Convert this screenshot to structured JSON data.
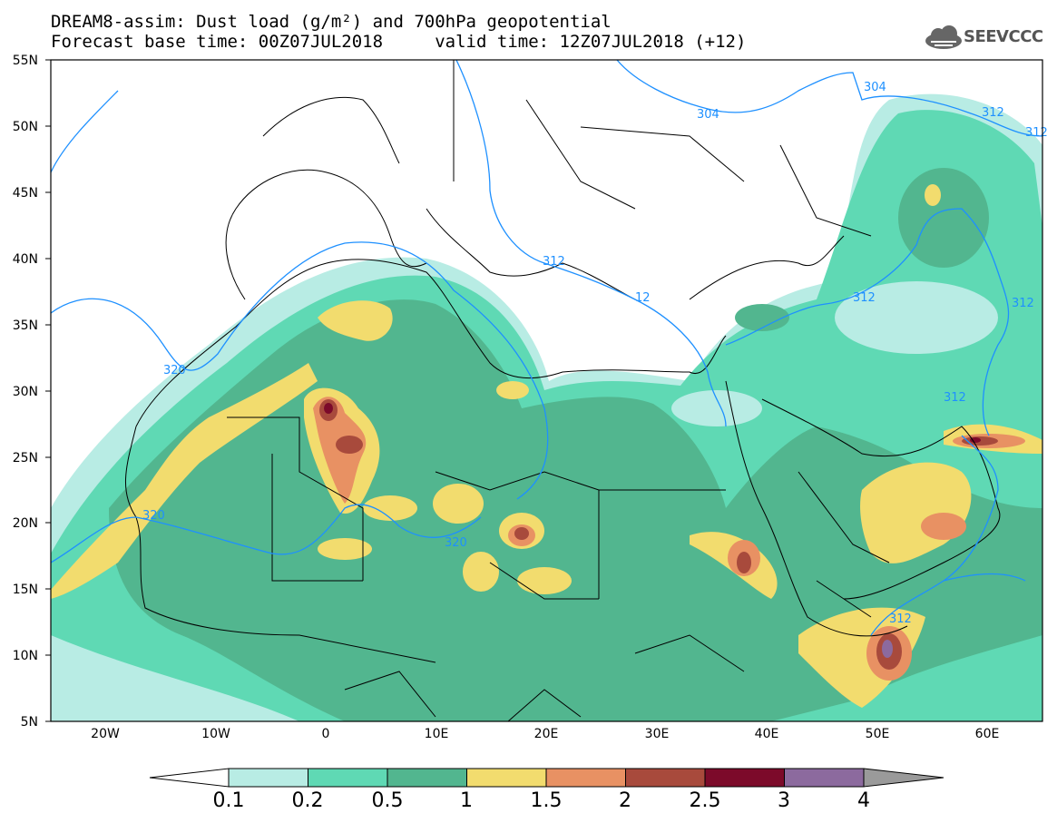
{
  "title": {
    "line1": "DREAM8-assim: Dust load (g/m²) and 700hPa geopotential",
    "line2": "Forecast base time: 00Z07JUL2018     valid time: 12Z07JUL2018 (+12)"
  },
  "logo": {
    "text": "SEEVCCC",
    "icon": "cloud-icon"
  },
  "map": {
    "lon_range": [
      -25,
      65
    ],
    "lat_range": [
      5,
      55
    ],
    "lat_ticks": [
      "55N",
      "50N",
      "45N",
      "40N",
      "35N",
      "30N",
      "25N",
      "20N",
      "15N",
      "10N",
      "5N"
    ],
    "lon_ticks": [
      "20W",
      "10W",
      "0",
      "10E",
      "20E",
      "30E",
      "40E",
      "50E",
      "60E"
    ],
    "contour_labels": [
      "304",
      "304",
      "312",
      "312",
      "312",
      "312",
      "312",
      "312",
      "320",
      "320",
      "320",
      "12",
      "312"
    ],
    "colors": {
      "land": "#ffffff",
      "border": "#000000",
      "contour": "#1e90ff"
    }
  },
  "colorbar": {
    "levels": [
      "0.1",
      "0.2",
      "0.5",
      "1",
      "1.5",
      "2",
      "2.5",
      "3",
      "4"
    ],
    "colors": [
      "#b8ece4",
      "#5fd9b4",
      "#52b68f",
      "#f2dc6e",
      "#e89163",
      "#a84a3c",
      "#7c0a2a",
      "#8c6a9e",
      "#9a9a9a"
    ],
    "under_color": "#ffffff"
  }
}
